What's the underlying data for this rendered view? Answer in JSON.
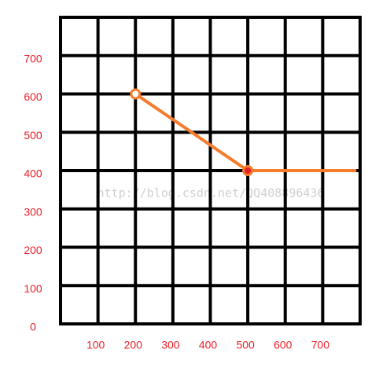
{
  "chart_data": {
    "type": "line",
    "x": [
      200,
      500,
      790
    ],
    "series": [
      {
        "color": "#f47c2c",
        "values": [
          600,
          400,
          400
        ],
        "marker_colors": [
          "none",
          "#e8202a",
          null
        ]
      }
    ],
    "xlim": [
      0,
      800
    ],
    "ylim": [
      0,
      800
    ],
    "xticks": [
      100,
      200,
      300,
      400,
      500,
      600,
      700
    ],
    "yticks": [
      0,
      100,
      200,
      300,
      400,
      500,
      600,
      700
    ],
    "grid": true,
    "grid_color": "#000000",
    "tick_label_color": "#e8202a",
    "watermark": "http://blog.csdn.net/QQ408896436"
  }
}
